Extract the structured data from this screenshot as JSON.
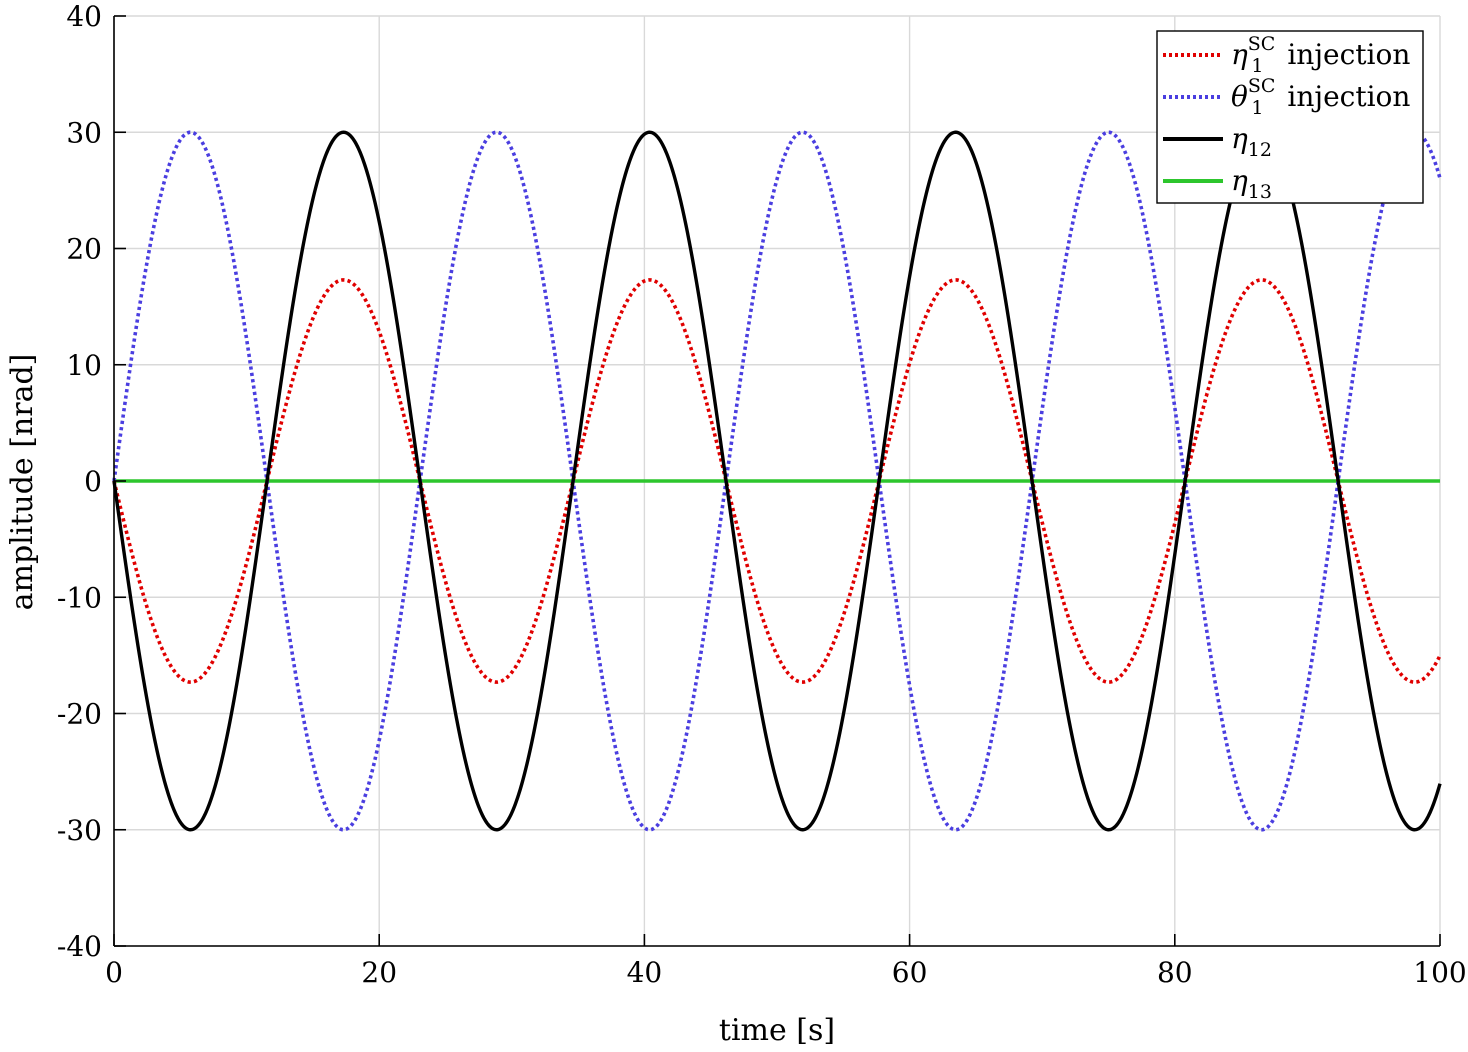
{
  "chart_data": {
    "type": "line",
    "title": "",
    "xlabel": "time [s]",
    "ylabel": "amplitude [nrad]",
    "xlim": [
      0,
      100
    ],
    "ylim": [
      -40,
      40
    ],
    "xticks": [
      0,
      20,
      40,
      60,
      80,
      100
    ],
    "yticks": [
      40,
      30,
      20,
      10,
      0,
      -10,
      -20,
      -30,
      -40
    ],
    "xtick_labels": [
      "0",
      "20",
      "40",
      "60",
      "80",
      "100"
    ],
    "ytick_labels": [
      "40",
      "30",
      "20",
      "10",
      "0",
      "-10",
      "-20",
      "-30",
      "-40"
    ],
    "grid": true,
    "legend_position": "top-right",
    "period_s": 23.08,
    "series": [
      {
        "name": "η_1^SC injection",
        "legend_base": "η",
        "legend_sub": "1",
        "legend_sup": "SC",
        "legend_suffix": " injection",
        "color": "#e00000",
        "style": "dotted",
        "function": "-A*sin(2*pi*t/T)",
        "amplitude": 17.3
      },
      {
        "name": "θ_1^SC injection",
        "legend_base": "θ",
        "legend_sub": "1",
        "legend_sup": "SC",
        "legend_suffix": " injection",
        "color": "#4a3ee0",
        "style": "dotted",
        "function": "A*sin(2*pi*t/T)",
        "amplitude": 30
      },
      {
        "name": "η_12",
        "legend_base": "η",
        "legend_sub": "12",
        "legend_sup": "",
        "legend_suffix": "",
        "color": "#000000",
        "style": "solid",
        "function": "-A*sin(2*pi*t/T)",
        "amplitude": 30
      },
      {
        "name": "η_13",
        "legend_base": "η",
        "legend_sub": "13",
        "legend_sup": "",
        "legend_suffix": "",
        "color": "#2dc62d",
        "style": "solid",
        "function": "0",
        "amplitude": 0
      }
    ]
  }
}
